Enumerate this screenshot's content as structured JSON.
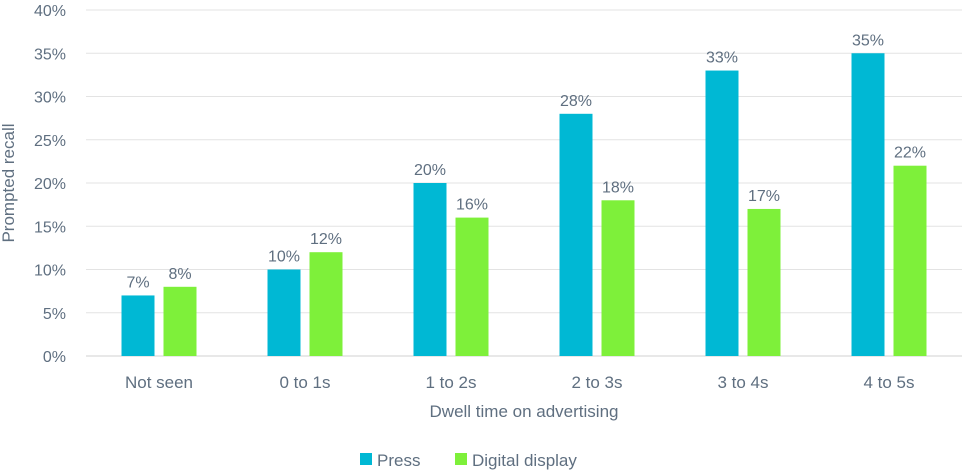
{
  "chart_data": {
    "type": "bar",
    "title": "",
    "xlabel": "Dwell time on advertising",
    "ylabel": "Prompted recall",
    "categories": [
      "Not seen",
      "0 to 1s",
      "1 to 2s",
      "2 to 3s",
      "3 to 4s",
      "4 to 5s"
    ],
    "series": [
      {
        "name": "Press",
        "color": "#00b8d4",
        "values": [
          7,
          10,
          20,
          28,
          33,
          35
        ],
        "labels": [
          "7%",
          "10%",
          "20%",
          "28%",
          "33%",
          "35%"
        ]
      },
      {
        "name": "Digital display",
        "color": "#7ef03a",
        "values": [
          8,
          12,
          16,
          18,
          17,
          22
        ],
        "labels": [
          "8%",
          "12%",
          "16%",
          "18%",
          "17%",
          "22%"
        ]
      }
    ],
    "ylim": [
      0,
      40
    ],
    "yticks": [
      0,
      5,
      10,
      15,
      20,
      25,
      30,
      35,
      40
    ],
    "ytick_labels": [
      "0%",
      "5%",
      "10%",
      "15%",
      "20%",
      "25%",
      "30%",
      "35%",
      "40%"
    ],
    "grid": true,
    "legend": "bottom-center"
  }
}
